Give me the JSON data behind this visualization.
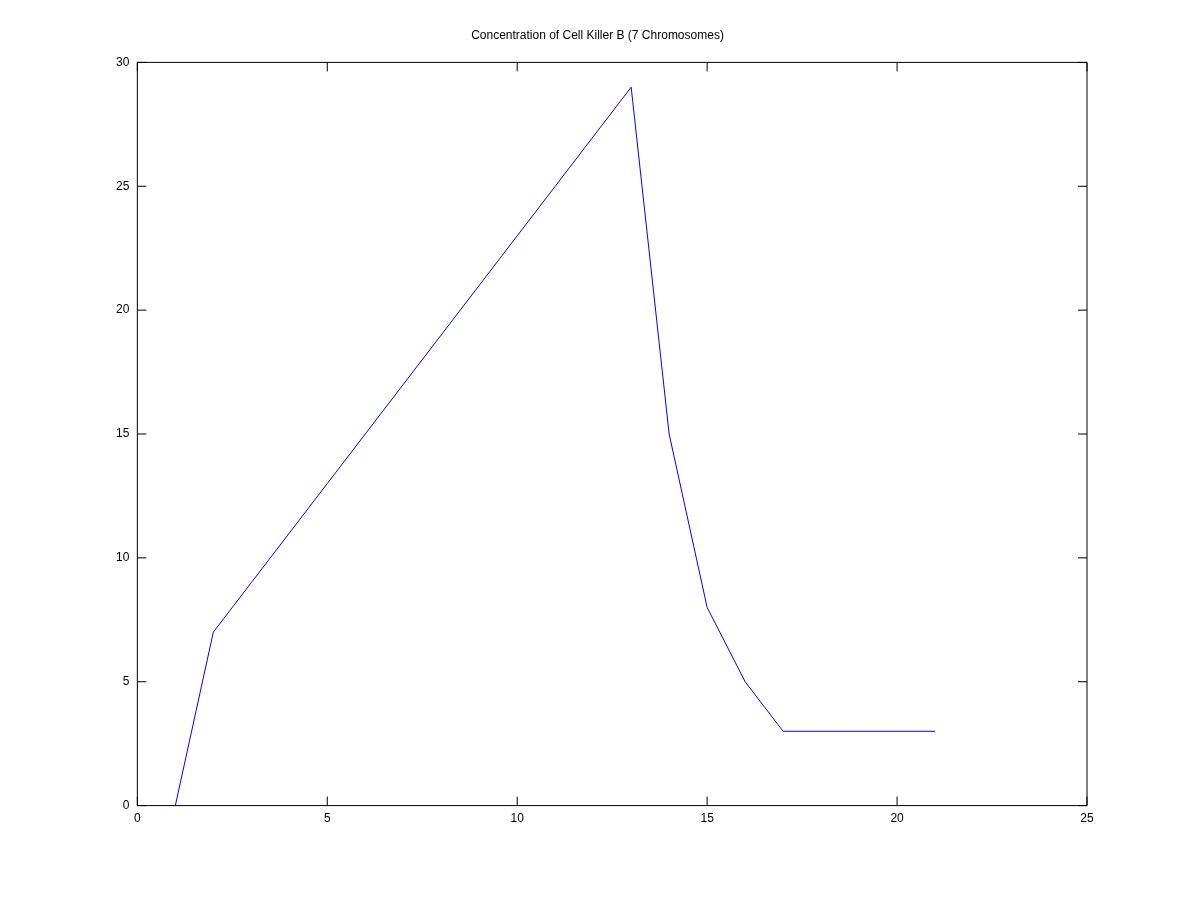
{
  "chart_data": {
    "type": "line",
    "title": "Concentration of Cell Killer B (7 Chromosomes)",
    "x": [
      1,
      2,
      3,
      4,
      5,
      6,
      7,
      8,
      9,
      10,
      11,
      12,
      13,
      14,
      15,
      16,
      17,
      18,
      19,
      20,
      21
    ],
    "series": [
      {
        "color": "#0000ff",
        "values": [
          0,
          7,
          9,
          11,
          13,
          15,
          17,
          19,
          21,
          23,
          25,
          27,
          29,
          15,
          8,
          5,
          3,
          3,
          3,
          3,
          3
        ]
      }
    ],
    "xlim": [
      0,
      25
    ],
    "xticks": [
      0,
      5,
      10,
      15,
      20,
      25
    ],
    "ylim": [
      0,
      30
    ],
    "yticks": [
      0,
      5,
      10,
      15,
      20,
      25,
      30
    ],
    "marker": "none",
    "line_style": "solid"
  }
}
